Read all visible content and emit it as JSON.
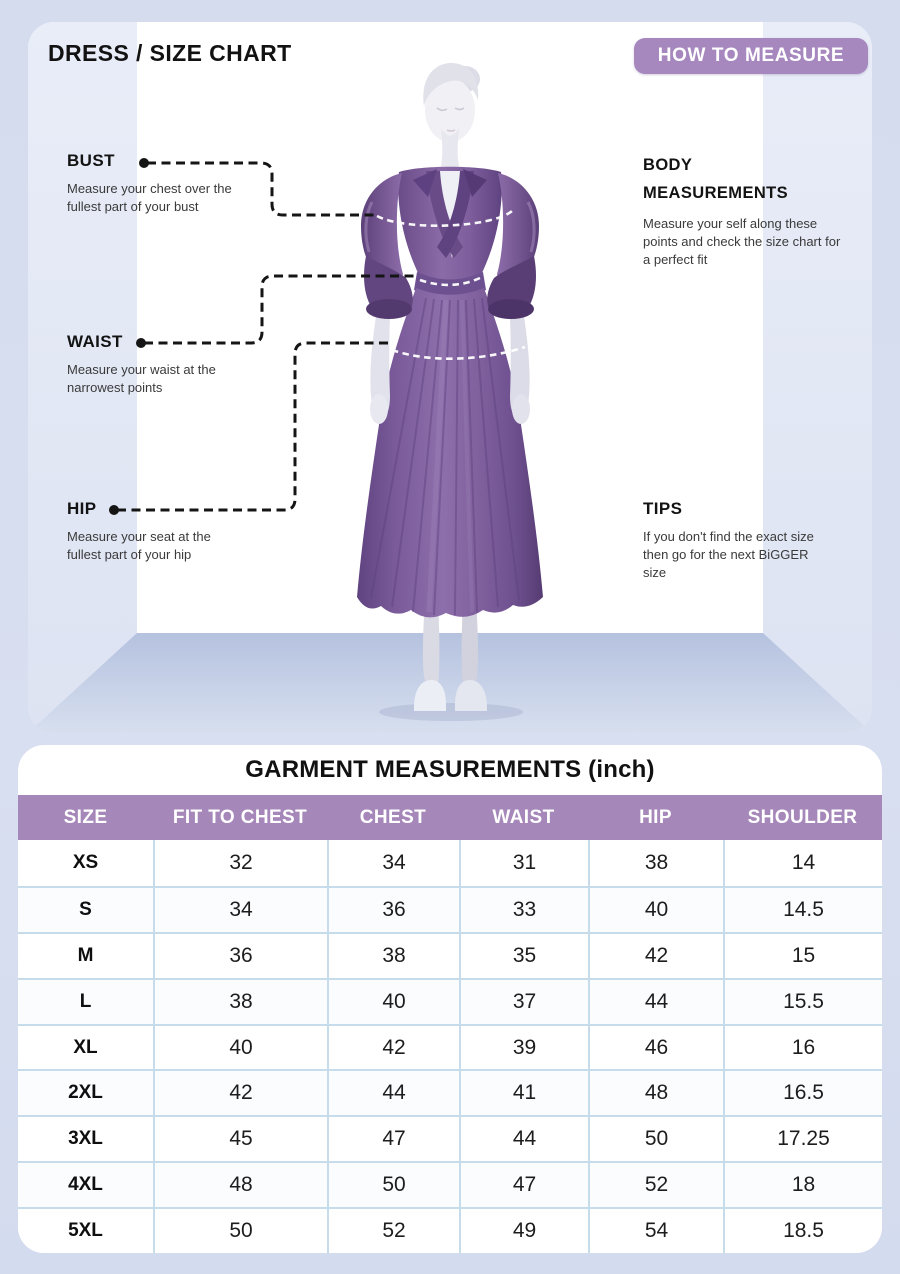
{
  "header": {
    "title": "DRESS / SIZE CHART",
    "how_to_measure_label": "HOW TO MEASURE"
  },
  "annotations": {
    "bust": {
      "label": "BUST",
      "description": "Measure your chest over the fullest part of your bust"
    },
    "waist": {
      "label": "WAIST",
      "description": "Measure your waist at the narrowest points"
    },
    "hip": {
      "label": "HIP",
      "description": "Measure your seat at the fullest part of your hip"
    },
    "body_measurements": {
      "label": "BODY MEASUREMENTS",
      "description": "Measure your self along these points and check the size chart for a perfect fit"
    },
    "tips": {
      "label": "TIPS",
      "description": "If you don't find the exact size then go for the next BiGGER size"
    }
  },
  "chart_data": {
    "type": "table",
    "title": "GARMENT MEASUREMENTS (inch)",
    "columns": [
      "SIZE",
      "FIT TO CHEST",
      "CHEST",
      "WAIST",
      "HIP",
      "SHOULDER"
    ],
    "rows": [
      [
        "XS",
        "32",
        "34",
        "31",
        "38",
        "14"
      ],
      [
        "S",
        "34",
        "36",
        "33",
        "40",
        "14.5"
      ],
      [
        "M",
        "36",
        "38",
        "35",
        "42",
        "15"
      ],
      [
        "L",
        "38",
        "40",
        "37",
        "44",
        "15.5"
      ],
      [
        "XL",
        "40",
        "42",
        "39",
        "46",
        "16"
      ],
      [
        "2XL",
        "42",
        "44",
        "41",
        "48",
        "16.5"
      ],
      [
        "3XL",
        "45",
        "47",
        "44",
        "50",
        "17.25"
      ],
      [
        "4XL",
        "48",
        "50",
        "47",
        "52",
        "18"
      ],
      [
        "5XL",
        "50",
        "52",
        "49",
        "54",
        "18.5"
      ]
    ]
  },
  "colors": {
    "accent_purple": "#a687ba",
    "dress_purple": "#7c5d9b",
    "table_border": "#c6dcea",
    "page_background": "#d5ddee"
  }
}
